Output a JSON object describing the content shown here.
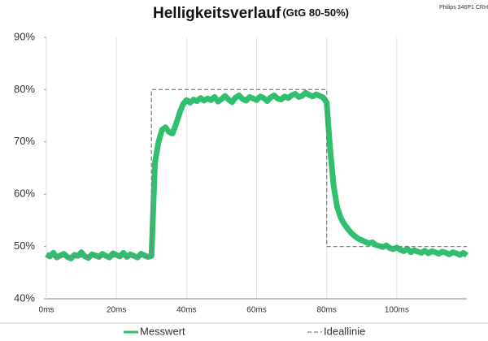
{
  "chart_data": {
    "type": "line",
    "title": "Helligkeitsverlauf",
    "subtitle": "(GtG 80-50%)",
    "annotation": "Philips 346P1  CRH",
    "series": [
      {
        "name": "Messwert",
        "color": "#2fbf6f",
        "style": "solid",
        "x": [
          0,
          1,
          2,
          3,
          4,
          5,
          6,
          7,
          8,
          9,
          10,
          11,
          12,
          13,
          14,
          15,
          16,
          17,
          18,
          19,
          20,
          21,
          22,
          23,
          24,
          25,
          26,
          27,
          28,
          29,
          30,
          31,
          32,
          33,
          34,
          35,
          36,
          37,
          38,
          39,
          40,
          41,
          42,
          43,
          44,
          45,
          46,
          47,
          48,
          49,
          50,
          51,
          52,
          53,
          54,
          55,
          56,
          57,
          58,
          59,
          60,
          61,
          62,
          63,
          64,
          65,
          66,
          67,
          68,
          69,
          70,
          71,
          72,
          73,
          74,
          75,
          76,
          77,
          78,
          79,
          80,
          81,
          82,
          83,
          84,
          85,
          86,
          87,
          88,
          89,
          90,
          91,
          92,
          93,
          94,
          95,
          96,
          97,
          98,
          99,
          100,
          101,
          102,
          103,
          104,
          105,
          106,
          107,
          108,
          109,
          110,
          111,
          112,
          113,
          114,
          115,
          116,
          117,
          118,
          119,
          120
        ],
        "values": [
          48.5,
          48.1,
          48.8,
          47.9,
          48.3,
          48.6,
          48.0,
          47.7,
          48.4,
          48.2,
          48.9,
          48.1,
          47.8,
          48.5,
          48.3,
          48.0,
          48.6,
          48.2,
          47.9,
          48.7,
          48.4,
          48.1,
          48.8,
          48.0,
          48.5,
          48.2,
          47.9,
          48.6,
          48.3,
          48.0,
          48.2,
          66,
          70,
          72.3,
          72.8,
          71.9,
          71.6,
          73.4,
          75.5,
          77.2,
          78.0,
          77.5,
          78.1,
          77.8,
          78.4,
          77.9,
          78.3,
          78.0,
          78.6,
          77.7,
          78.2,
          78.8,
          78.1,
          77.6,
          78.5,
          78.9,
          78.2,
          77.9,
          78.6,
          78.3,
          78.0,
          78.7,
          78.4,
          77.8,
          78.5,
          78.9,
          78.3,
          78.1,
          78.7,
          78.4,
          78.9,
          79.2,
          78.6,
          78.8,
          79.4,
          79.0,
          78.7,
          79.1,
          78.8,
          78.5,
          77.5,
          68.5,
          61.5,
          57.5,
          55.5,
          54.3,
          53.4,
          52.6,
          52.0,
          51.5,
          51.2,
          50.9,
          50.6,
          50.8,
          50.3,
          50.1,
          49.9,
          50.2,
          49.7,
          49.5,
          49.8,
          49.4,
          49.1,
          49.6,
          48.9,
          49.3,
          49.0,
          48.8,
          49.2,
          48.7,
          49.1,
          48.9,
          48.6,
          49.0,
          48.8,
          48.5,
          48.9,
          48.7,
          48.4,
          48.8,
          48.3
        ]
      },
      {
        "name": "Ideallinie",
        "color": "#808080",
        "style": "dashed",
        "x": [
          0,
          30,
          30,
          80,
          80,
          120
        ],
        "values": [
          48,
          48,
          80,
          80,
          50,
          50
        ]
      }
    ],
    "xlim": [
      0,
      120
    ],
    "xticks": [
      {
        "value": 0,
        "label": "0ms"
      },
      {
        "value": 20,
        "label": "20ms"
      },
      {
        "value": 40,
        "label": "40ms"
      },
      {
        "value": 60,
        "label": "60ms"
      },
      {
        "value": 80,
        "label": "80ms"
      },
      {
        "value": 100,
        "label": "100ms"
      }
    ],
    "ylim": [
      40,
      90
    ],
    "yticks": [
      {
        "value": 40,
        "label": "40%"
      },
      {
        "value": 50,
        "label": "50%"
      },
      {
        "value": 60,
        "label": "60%"
      },
      {
        "value": 70,
        "label": "70%"
      },
      {
        "value": 80,
        "label": "80%"
      },
      {
        "value": 90,
        "label": "90%"
      }
    ],
    "grid": "x"
  }
}
